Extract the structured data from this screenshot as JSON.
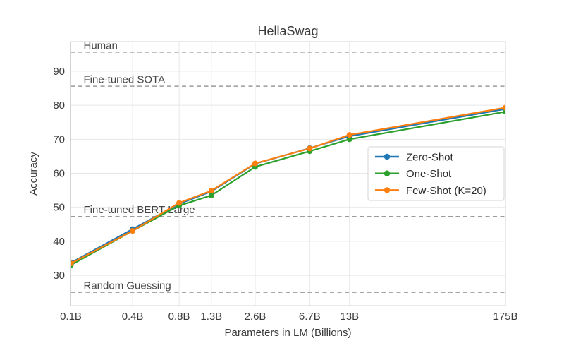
{
  "chart_data": {
    "type": "line",
    "title": "HellaSwag",
    "xlabel": "Parameters in LM (Billions)",
    "ylabel": "Accuracy",
    "x_scale": "log",
    "x_tick_labels": [
      "0.1B",
      "0.4B",
      "0.8B",
      "1.3B",
      "2.6B",
      "6.7B",
      "13B",
      "175B"
    ],
    "x_values_billions": [
      0.125,
      0.35,
      0.76,
      1.3,
      2.7,
      6.7,
      13,
      175
    ],
    "y_ticks": [
      30,
      40,
      50,
      60,
      70,
      80,
      90
    ],
    "ylim": [
      21.1,
      98.7
    ],
    "grid": true,
    "legend_position": "center right",
    "series": [
      {
        "name": "Zero-Shot",
        "color": "#1f77b4",
        "values": [
          33.7,
          43.6,
          51.0,
          54.7,
          62.8,
          67.4,
          70.9,
          78.9
        ]
      },
      {
        "name": "One-Shot",
        "color": "#2ca02c",
        "values": [
          33.0,
          43.1,
          50.5,
          53.5,
          61.9,
          66.5,
          70.0,
          78.1
        ]
      },
      {
        "name": "Few-Shot (K=20)",
        "color": "#ff7f0e",
        "values": [
          33.5,
          43.1,
          51.3,
          54.9,
          62.9,
          67.3,
          71.3,
          79.3
        ]
      }
    ],
    "reference_lines": [
      {
        "label": "Human",
        "value": 95.6
      },
      {
        "label": "Fine-tuned SOTA",
        "value": 85.6
      },
      {
        "label": "Fine-tuned BERT-Large",
        "value": 47.3
      },
      {
        "label": "Random Guessing",
        "value": 25.0
      }
    ]
  },
  "style": {
    "grid_color": "#e7e7e7",
    "spine_color": "#d3d3d3",
    "ref_line_color": "#9b9b9b",
    "text_color": "#3b3b3b",
    "annotation_color": "#454545",
    "legend_border_color": "#d6d6d6",
    "background": "#ffffff"
  }
}
